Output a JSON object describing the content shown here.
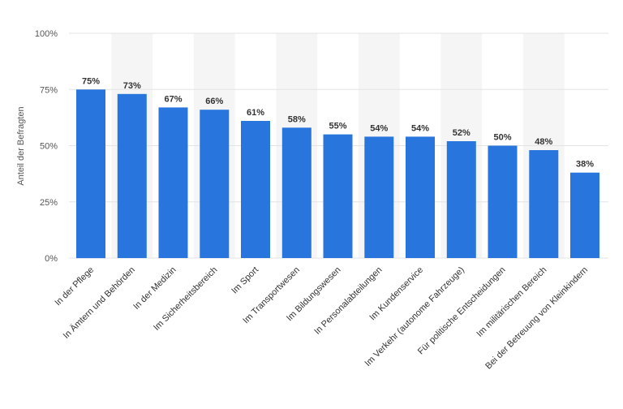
{
  "chart_data": {
    "type": "bar",
    "title": "",
    "xlabel": "",
    "ylabel": "Anteil der Befragten",
    "ylim": [
      0,
      100
    ],
    "y_ticks": [
      "0%",
      "25%",
      "50%",
      "75%",
      "100%"
    ],
    "grid": true,
    "categories": [
      "In der Pflege",
      "In Ämtern und Behörden",
      "In der Medizin",
      "Im Sicherheitsbereich",
      "Im Sport",
      "Im Transportwesen",
      "Im Bildungswesen",
      "In Personalabteilungen",
      "Im Kundenservice",
      "Im Verkehr (autonome Fahrzeuge)",
      "Für politische Entscheidungen",
      "Im militärischen Bereich",
      "Bei der Betreuung von Kleinkindern"
    ],
    "values": [
      75,
      73,
      67,
      66,
      61,
      58,
      55,
      54,
      54,
      52,
      50,
      48,
      38
    ],
    "value_labels": [
      "75%",
      "73%",
      "67%",
      "66%",
      "61%",
      "58%",
      "55%",
      "54%",
      "54%",
      "52%",
      "50%",
      "48%",
      "38%"
    ],
    "bar_color": "#2876dd",
    "band_color": "#f5f5f5",
    "grid_color": "#e3e3e3"
  }
}
